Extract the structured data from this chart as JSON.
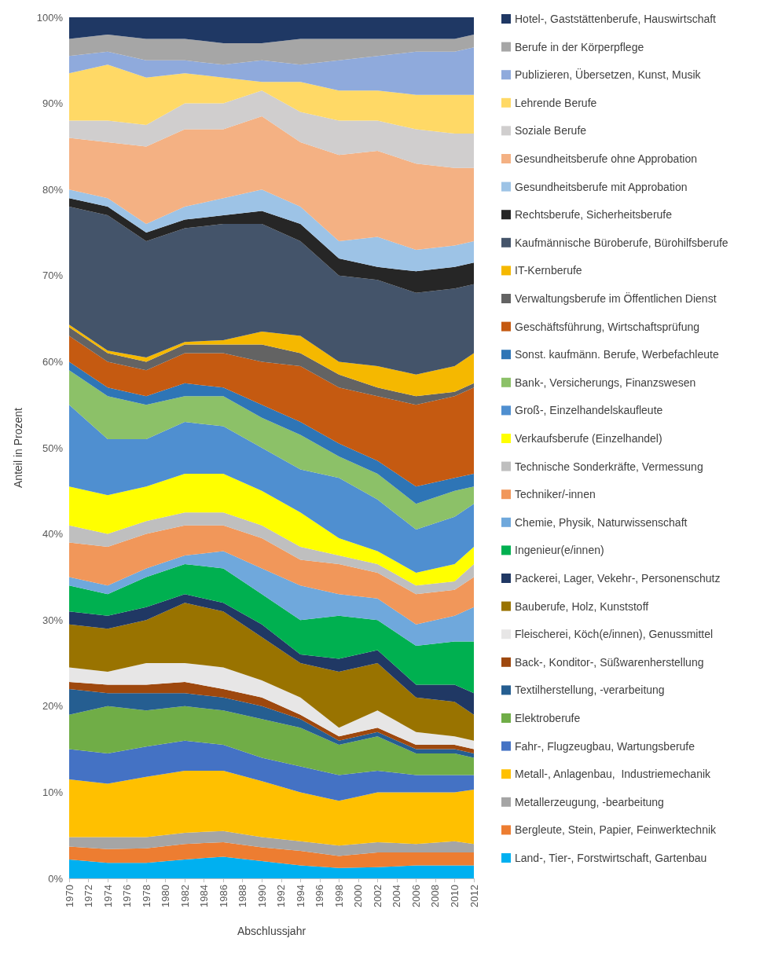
{
  "chart_data": {
    "type": "area",
    "stacked": true,
    "xlabel": "Abschlussjahr",
    "ylabel": "Anteil in Prozent",
    "legend": "right",
    "x": [
      1970,
      1974,
      1978,
      1982,
      1986,
      1990,
      1994,
      1998,
      2002,
      2006,
      2010,
      2012
    ],
    "xlim": [
      1970,
      2012
    ],
    "xticks": [
      1970,
      1972,
      1974,
      1976,
      1978,
      1980,
      1982,
      1984,
      1986,
      1988,
      1990,
      1992,
      1994,
      1996,
      1998,
      2000,
      2002,
      2004,
      2006,
      2008,
      2010,
      2012
    ],
    "ylim": [
      0,
      100
    ],
    "yticks": [
      {
        "value": 0,
        "label": "0%"
      },
      {
        "value": 10,
        "label": "10%"
      },
      {
        "value": 20,
        "label": "20%"
      },
      {
        "value": 30,
        "label": "30%"
      },
      {
        "value": 40,
        "label": "40%"
      },
      {
        "value": 50,
        "label": "50%"
      },
      {
        "value": 60,
        "label": "60%"
      },
      {
        "value": 70,
        "label": "70%"
      },
      {
        "value": 80,
        "label": "80%"
      },
      {
        "value": 90,
        "label": "90%"
      },
      {
        "value": 100,
        "label": "100%"
      }
    ],
    "series": [
      {
        "name": "Land-, Tier-, Forstwirtschaft, Gartenbau",
        "color": "#00b0f0",
        "values": [
          2.2,
          1.8,
          1.8,
          2.2,
          2.5,
          2.0,
          1.5,
          1.2,
          1.3,
          1.5,
          1.5,
          1.5
        ]
      },
      {
        "name": "Bergleute, Stein, Papier, Feinwerktechnik",
        "color": "#ed7d31",
        "values": [
          1.5,
          1.6,
          1.7,
          1.8,
          1.7,
          1.6,
          1.7,
          1.4,
          1.7,
          1.5,
          1.5,
          1.5
        ]
      },
      {
        "name": "Metallerzeugung, -bearbeitung",
        "color": "#a5a5a5",
        "values": [
          1.1,
          1.4,
          1.3,
          1.3,
          1.3,
          1.2,
          1.1,
          1.2,
          1.2,
          1.0,
          1.3,
          1.0
        ]
      },
      {
        "name": "Metall-, Anlagenbau,  Industriemechanik",
        "color": "#ffc000",
        "values": [
          6.7,
          6.2,
          7.0,
          7.2,
          7.0,
          6.5,
          5.7,
          5.2,
          5.8,
          6.0,
          5.7,
          6.3
        ]
      },
      {
        "name": "Fahr-, Flugzeugbau, Wartungsberufe",
        "color": "#4472c4",
        "values": [
          3.5,
          3.5,
          3.5,
          3.5,
          3.0,
          2.7,
          3.0,
          3.0,
          2.5,
          2.0,
          2.0,
          1.7
        ]
      },
      {
        "name": "Elektroberufe",
        "color": "#70ad47",
        "values": [
          4,
          5.5,
          4.2,
          4,
          4,
          4.5,
          4.5,
          3.5,
          4,
          2.5,
          2.5,
          2.0
        ]
      },
      {
        "name": "Textilherstellung, -verarbeitung",
        "color": "#255e91",
        "values": [
          3,
          1.5,
          2,
          1.5,
          1.5,
          1.5,
          1,
          0.5,
          0.5,
          0.5,
          0.5,
          0.5
        ]
      },
      {
        "name": "Back-, Konditor-, Süßwarenherstellung",
        "color": "#9e480e",
        "values": [
          0.8,
          1,
          1,
          1.3,
          1,
          1,
          0.5,
          0.5,
          0.5,
          0.5,
          0.5,
          0.5
        ]
      },
      {
        "name": "Fleischerei, Köch(e/innen), Genussmittel",
        "color": "#e7e6e6",
        "values": [
          1.7,
          1.5,
          2.5,
          2.2,
          2.5,
          2,
          2,
          1,
          2,
          1.5,
          1,
          1
        ]
      },
      {
        "name": "Bauberufe, Holz, Kunststoff",
        "color": "#997300",
        "values": [
          5,
          5,
          5,
          7,
          6.5,
          5,
          4,
          6.5,
          5.5,
          4,
          4,
          3
        ]
      },
      {
        "name": "Packerei, Lager, Vekehr-, Personenschutz",
        "color": "#203864",
        "values": [
          1.5,
          1.5,
          1.5,
          1,
          1,
          1.5,
          1,
          1.5,
          1.5,
          1.5,
          2,
          2.5
        ]
      },
      {
        "name": "Ingenieur(e/innen)",
        "color": "#00b050",
        "values": [
          3,
          2.5,
          3.5,
          3.5,
          4,
          3.5,
          4,
          5,
          3.5,
          4.5,
          5,
          6
        ]
      },
      {
        "name": "Chemie, Physik, Naturwissenschaft",
        "color": "#6fa8dc",
        "values": [
          1,
          1,
          1,
          1,
          2,
          3,
          4,
          2.5,
          2.5,
          2.5,
          3,
          4
        ]
      },
      {
        "name": "Techniker/-innen",
        "color": "#f1975a",
        "values": [
          4,
          4.5,
          4,
          3.5,
          3,
          3.5,
          3,
          3.5,
          3,
          3.5,
          3,
          3.5
        ]
      },
      {
        "name": "Technische Sonderkräfte, Vermessung",
        "color": "#bfbfbf",
        "values": [
          2,
          1.5,
          1.5,
          1.5,
          1.5,
          1.5,
          1.5,
          1,
          1,
          1,
          1,
          1.5
        ]
      },
      {
        "name": "Verkaufsberufe (Einzelhandel)",
        "color": "#ffff00",
        "values": [
          4.5,
          4.5,
          4,
          4.5,
          4.5,
          4,
          4,
          2,
          1.5,
          1.5,
          2,
          2
        ]
      },
      {
        "name": "Groß-, Einzelhandelskaufleute",
        "color": "#4f8fd0",
        "values": [
          9.5,
          6.5,
          5.5,
          6,
          5.5,
          5,
          5,
          7,
          6,
          5,
          5.5,
          5
        ]
      },
      {
        "name": "Bank-, Versicherungs, Finanzswesen",
        "color": "#8cc168",
        "values": [
          4,
          5,
          4,
          3,
          3.5,
          3.5,
          4,
          2.5,
          3,
          3,
          3,
          2
        ]
      },
      {
        "name": "Sonst. kaufmänn. Berufe, Werbefachleute",
        "color": "#2e75b6",
        "values": [
          1,
          1,
          1,
          1.5,
          1,
          1.5,
          1.5,
          1.5,
          1.5,
          2,
          1.5,
          1.5
        ]
      },
      {
        "name": "Geschäftsführung, Wirtschaftsprüfung",
        "color": "#c55a11",
        "values": [
          3,
          3,
          3,
          3.5,
          4,
          5,
          6.5,
          6.5,
          7.5,
          9.5,
          9.5,
          10
        ]
      },
      {
        "name": "Verwaltungsberufe im Öffentlichen Dienst",
        "color": "#636363",
        "values": [
          1,
          1,
          1,
          1,
          1,
          2,
          1.5,
          1.5,
          1,
          1,
          0.5,
          0.5
        ]
      },
      {
        "name": "IT-Kernberufe",
        "color": "#f5b800",
        "values": [
          0.3,
          0.3,
          0.5,
          0.3,
          0.5,
          1.5,
          2,
          1.5,
          2.5,
          2.5,
          3,
          3.5
        ]
      },
      {
        "name": "Kaufmännische Büroberufe, Bürohilfsberufe",
        "color": "#44546a",
        "values": [
          13.7,
          15.7,
          13.5,
          13.2,
          13.5,
          12.5,
          11,
          10,
          10,
          9.5,
          9,
          8
        ]
      },
      {
        "name": "Rechtsberufe, Sicherheitsberufe",
        "color": "#262626",
        "values": [
          1,
          1,
          1,
          1,
          1,
          1.5,
          2,
          2,
          1.5,
          2.5,
          2.5,
          2.5
        ]
      },
      {
        "name": "Gesundheitsberufe mit Approbation",
        "color": "#9dc3e6",
        "values": [
          1,
          1,
          1,
          1.5,
          2,
          2.5,
          2,
          2,
          3.5,
          2.5,
          2.5,
          2.5
        ]
      },
      {
        "name": "Gesundheitsberufe ohne Approbation",
        "color": "#f4b183",
        "values": [
          6,
          6.5,
          9,
          9,
          8,
          8.5,
          7.5,
          10,
          10,
          10,
          9,
          8.5
        ]
      },
      {
        "name": "Soziale Berufe",
        "color": "#d0cece",
        "values": [
          2,
          2.5,
          2.5,
          3,
          3,
          3,
          3.5,
          4,
          3.5,
          4,
          4,
          4
        ]
      },
      {
        "name": "Lehrende Berufe",
        "color": "#ffd966",
        "values": [
          5.5,
          6.5,
          5.5,
          3.5,
          3,
          1,
          3.5,
          3.5,
          3.5,
          4,
          4.5,
          4.5
        ]
      },
      {
        "name": "Publizieren, Übersetzen, Kunst, Musik",
        "color": "#8faadc",
        "values": [
          2,
          1.5,
          2,
          1.5,
          1.5,
          2.5,
          2,
          3.5,
          4,
          5,
          5,
          5.5
        ]
      },
      {
        "name": "Berufe in der Körperpflege",
        "color": "#a6a6a6",
        "values": [
          2,
          2,
          2.5,
          2.5,
          2.5,
          2,
          3,
          2.5,
          2,
          1.5,
          1.5,
          1.5
        ]
      },
      {
        "name": "Hotel-, Gaststättenberufe, Hauswirtschaft",
        "color": "#1f3864",
        "values": [
          2.5,
          2,
          2.5,
          2.5,
          3,
          3,
          2.5,
          2.5,
          2.5,
          2.5,
          2.5,
          2
        ]
      }
    ]
  }
}
